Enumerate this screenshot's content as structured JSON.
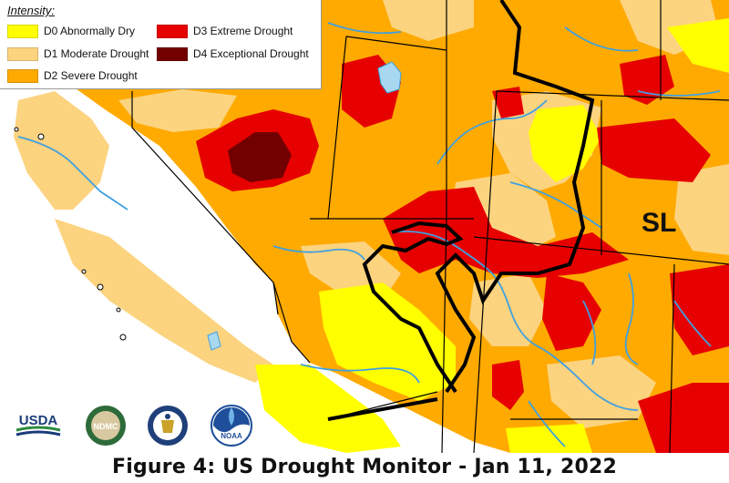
{
  "legend": {
    "title": "Intensity:",
    "items": [
      {
        "label": "D0 Abnormally Dry",
        "color": "#ffff00"
      },
      {
        "label": "D1 Moderate Drought",
        "color": "#fcd37f"
      },
      {
        "label": "D2 Severe Drought",
        "color": "#ffaa00"
      },
      {
        "label": "D3 Extreme Drought",
        "color": "#e60000"
      },
      {
        "label": "D4 Exceptional Drought",
        "color": "#730000"
      }
    ]
  },
  "colors": {
    "d0": "#ffff00",
    "d1": "#fcd37f",
    "d2": "#ffaa00",
    "d3": "#e60000",
    "d4": "#730000",
    "water": "#3fa0e0",
    "lake": "#a8d8f0",
    "border": "#000000"
  },
  "region_label": "SL",
  "logos": [
    {
      "name": "usda-logo",
      "text": "USDA"
    },
    {
      "name": "ndmc-logo",
      "text": "NDMC"
    },
    {
      "name": "doc-seal-logo",
      "text": ""
    },
    {
      "name": "noaa-logo",
      "text": "NOAA"
    }
  ],
  "caption": "Figure 4: US Drought Monitor - Jan 11, 2022"
}
